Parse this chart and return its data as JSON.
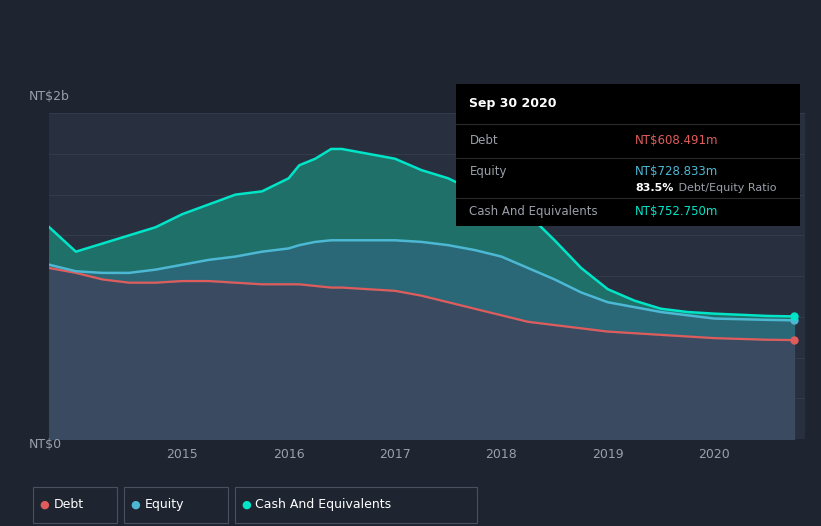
{
  "background_color": "#1e2530",
  "chart_bg_color": "#283040",
  "title": "Sep 30 2020",
  "tooltip_debt": "NT$608.491m",
  "tooltip_equity": "NT$728.833m",
  "tooltip_ratio": "83.5% Debt/Equity Ratio",
  "tooltip_cash": "NT$752.750m",
  "ylabel_top": "NT$2b",
  "ylabel_bottom": "NT$0",
  "x_labels": [
    "2015",
    "2016",
    "2017",
    "2018",
    "2019",
    "2020"
  ],
  "debt_color": "#e05c5c",
  "equity_color": "#4db8d4",
  "cash_color": "#00e5c8",
  "fill_debt_color": "#3a4a60",
  "fill_equity_color": "#2a6878",
  "fill_cash_color": "#1e7068",
  "legend_labels": [
    "Debt",
    "Equity",
    "Cash And Equivalents"
  ],
  "years": [
    2013.75,
    2014.0,
    2014.25,
    2014.5,
    2014.75,
    2015.0,
    2015.25,
    2015.5,
    2015.75,
    2016.0,
    2016.1,
    2016.25,
    2016.4,
    2016.5,
    2016.75,
    2017.0,
    2017.25,
    2017.5,
    2017.75,
    2018.0,
    2018.25,
    2018.5,
    2018.75,
    2019.0,
    2019.25,
    2019.5,
    2019.75,
    2020.0,
    2020.5,
    2020.75
  ],
  "debt": [
    1.05,
    1.02,
    0.98,
    0.96,
    0.96,
    0.97,
    0.97,
    0.96,
    0.95,
    0.95,
    0.95,
    0.94,
    0.93,
    0.93,
    0.92,
    0.91,
    0.88,
    0.84,
    0.8,
    0.76,
    0.72,
    0.7,
    0.68,
    0.66,
    0.65,
    0.64,
    0.63,
    0.62,
    0.61,
    0.608
  ],
  "equity": [
    1.07,
    1.03,
    1.02,
    1.02,
    1.04,
    1.07,
    1.1,
    1.12,
    1.15,
    1.17,
    1.19,
    1.21,
    1.22,
    1.22,
    1.22,
    1.22,
    1.21,
    1.19,
    1.16,
    1.12,
    1.05,
    0.98,
    0.9,
    0.84,
    0.81,
    0.78,
    0.76,
    0.74,
    0.732,
    0.729
  ],
  "cash": [
    1.3,
    1.15,
    1.2,
    1.25,
    1.3,
    1.38,
    1.44,
    1.5,
    1.52,
    1.6,
    1.68,
    1.72,
    1.78,
    1.78,
    1.75,
    1.72,
    1.65,
    1.6,
    1.52,
    1.48,
    1.38,
    1.22,
    1.05,
    0.92,
    0.85,
    0.8,
    0.78,
    0.77,
    0.756,
    0.753
  ],
  "ylim": [
    0,
    2.0
  ],
  "xlim_start": 2013.75,
  "xlim_end": 2020.85
}
